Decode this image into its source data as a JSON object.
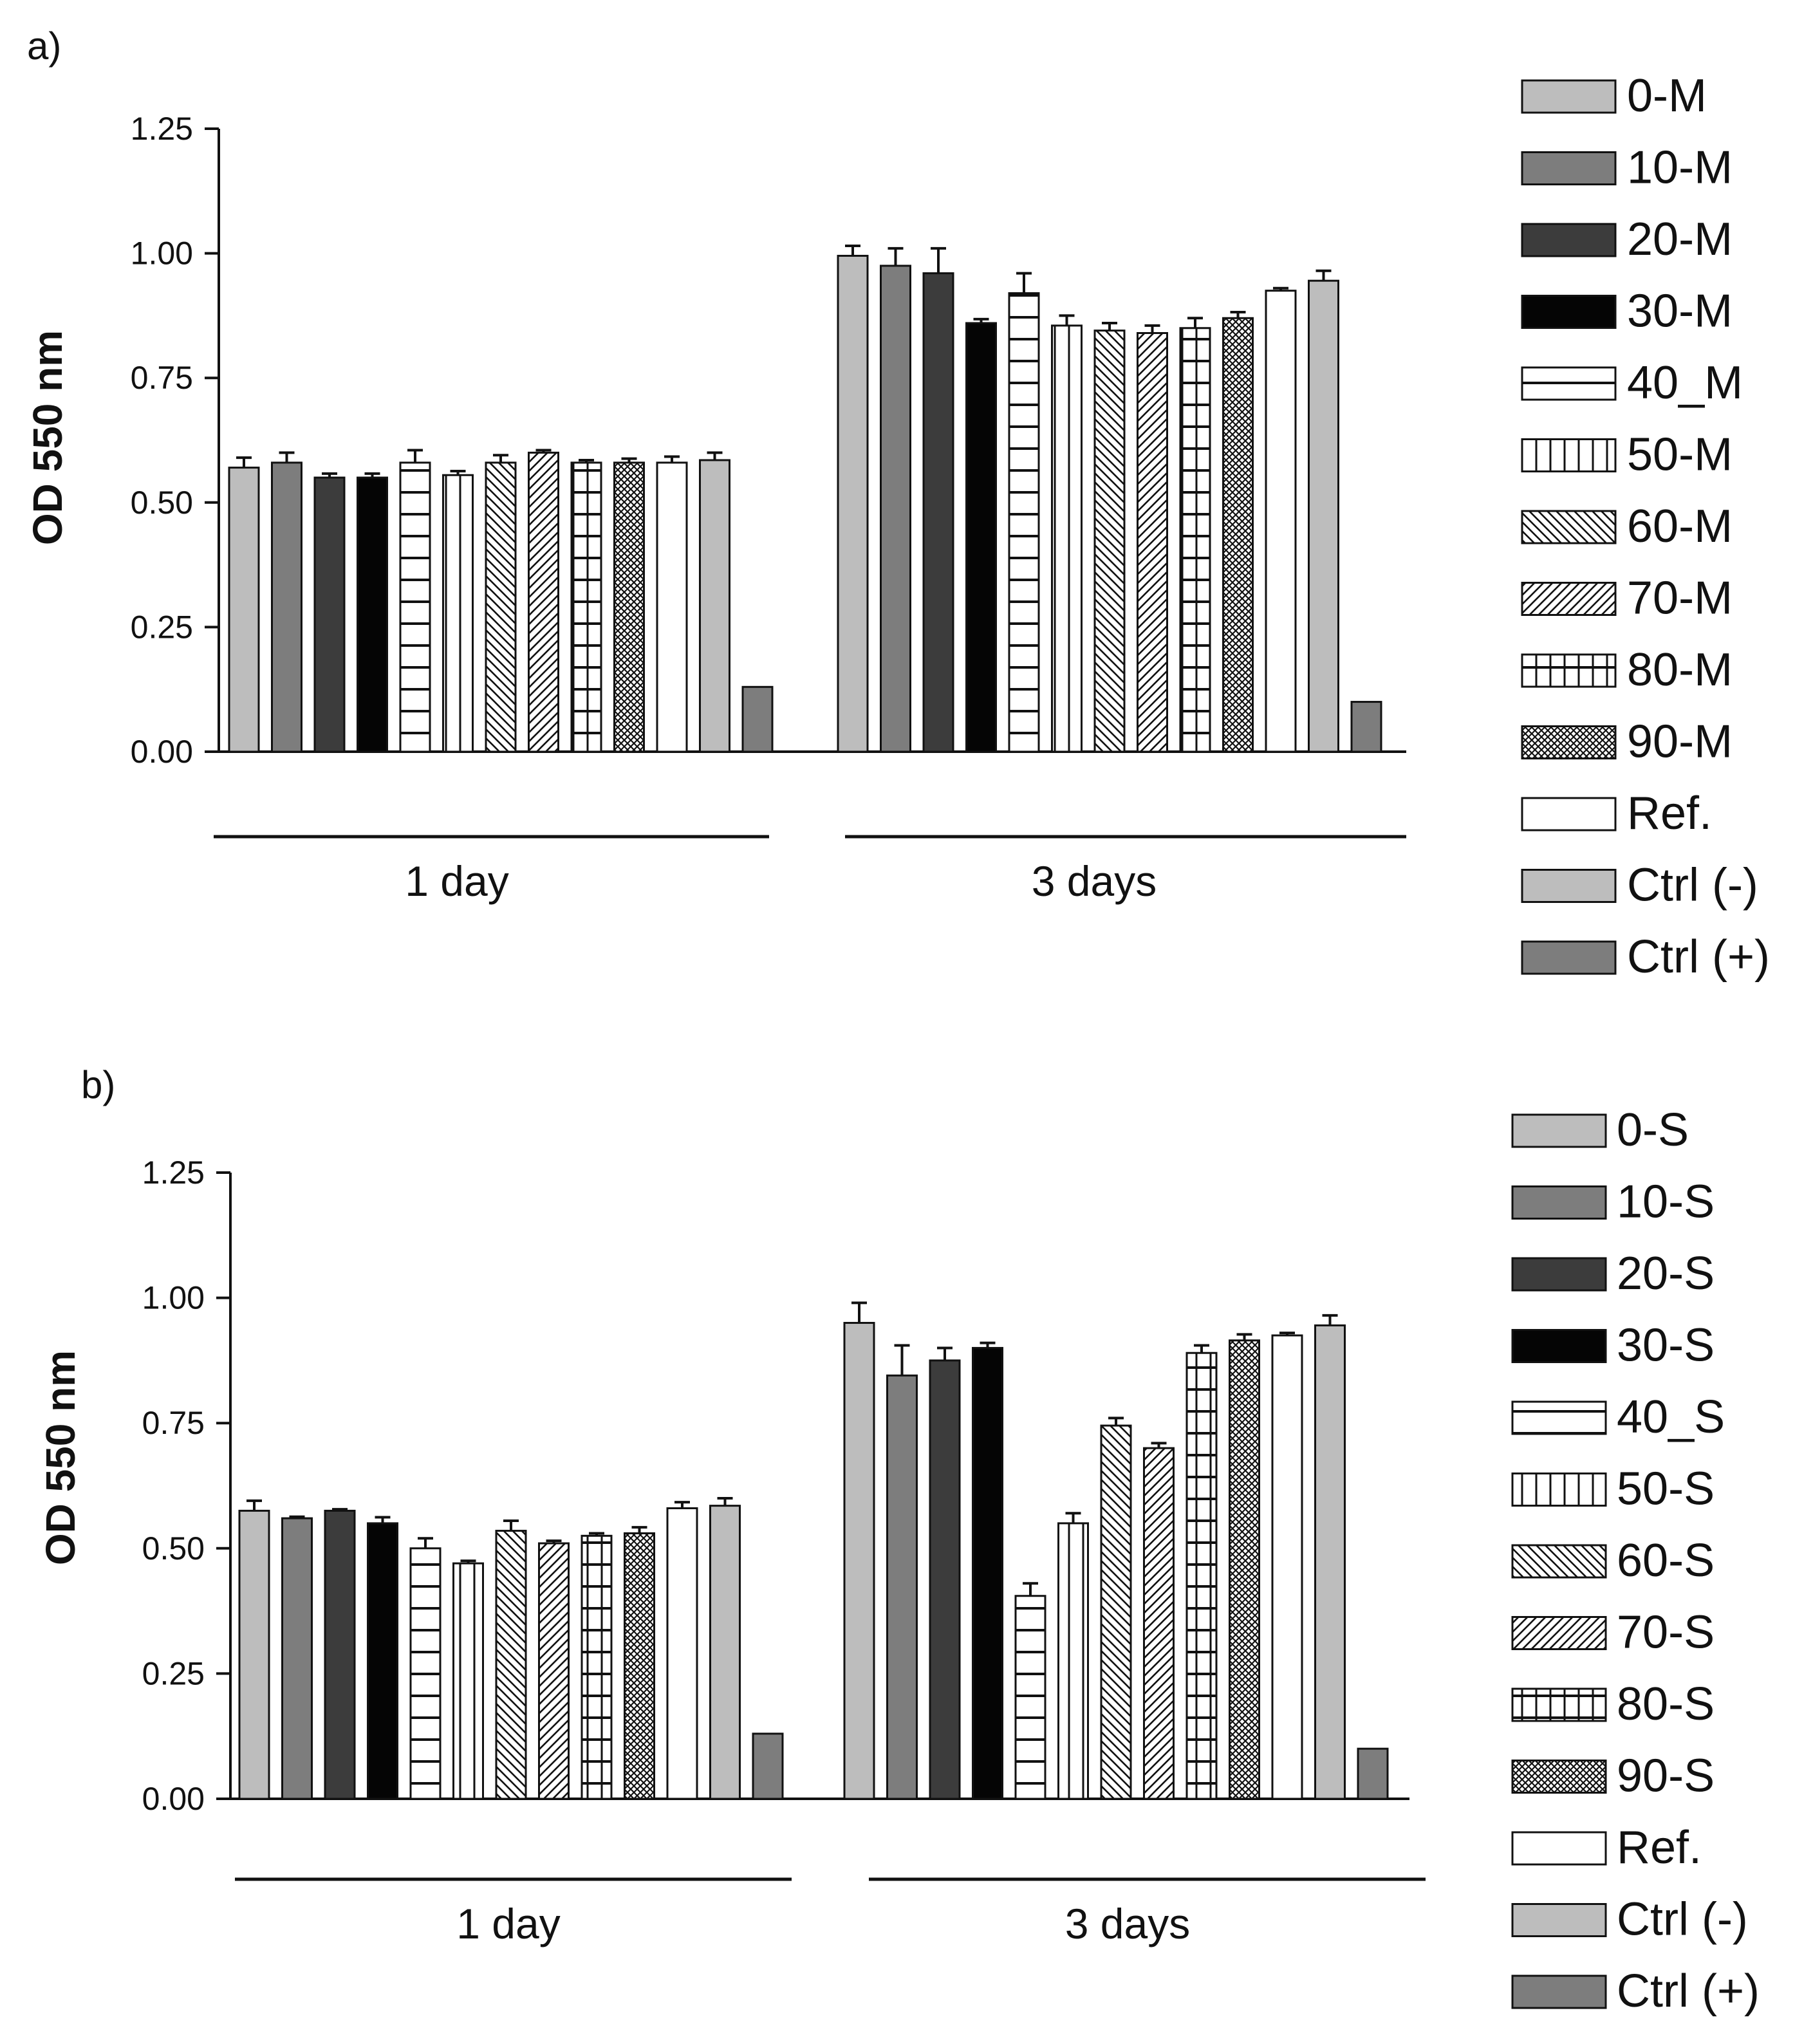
{
  "chart_data": [
    {
      "type": "bar",
      "panel_label": "a)",
      "ylabel": "OD 550 nm",
      "xlabel": "",
      "ylim": [
        0,
        1.25
      ],
      "yticks": [
        "0.00",
        "0.25",
        "0.50",
        "0.75",
        "1.00",
        "1.25"
      ],
      "categories": [
        "1 day",
        "3 days"
      ],
      "series": [
        {
          "name": "0-M",
          "pattern": "light",
          "values": [
            0.57,
            0.995
          ],
          "errors": [
            0.02,
            0.02
          ]
        },
        {
          "name": "10-M",
          "pattern": "medium",
          "values": [
            0.58,
            0.975
          ],
          "errors": [
            0.02,
            0.035
          ]
        },
        {
          "name": "20-M",
          "pattern": "dark",
          "values": [
            0.55,
            0.96
          ],
          "errors": [
            0.008,
            0.05
          ]
        },
        {
          "name": "30-M",
          "pattern": "black",
          "values": [
            0.55,
            0.86
          ],
          "errors": [
            0.008,
            0.008
          ]
        },
        {
          "name": "40_M",
          "pattern": "hlines",
          "values": [
            0.58,
            0.92
          ],
          "errors": [
            0.025,
            0.04
          ]
        },
        {
          "name": "50-M",
          "pattern": "vlines",
          "values": [
            0.555,
            0.855
          ],
          "errors": [
            0.008,
            0.02
          ]
        },
        {
          "name": "60-M",
          "pattern": "diag-down",
          "values": [
            0.58,
            0.845
          ],
          "errors": [
            0.015,
            0.015
          ]
        },
        {
          "name": "70-M",
          "pattern": "diag-up",
          "values": [
            0.6,
            0.84
          ],
          "errors": [
            0.005,
            0.015
          ]
        },
        {
          "name": "80-M",
          "pattern": "grid",
          "values": [
            0.58,
            0.85
          ],
          "errors": [
            0.005,
            0.02
          ]
        },
        {
          "name": "90-M",
          "pattern": "cross",
          "values": [
            0.58,
            0.87
          ],
          "errors": [
            0.008,
            0.012
          ]
        },
        {
          "name": "Ref.",
          "pattern": "white",
          "values": [
            0.58,
            0.925
          ],
          "errors": [
            0.012,
            0.005
          ]
        },
        {
          "name": "Ctrl (-)",
          "pattern": "light",
          "values": [
            0.585,
            0.945
          ],
          "errors": [
            0.015,
            0.02
          ]
        },
        {
          "name": "Ctrl (+)",
          "pattern": "medium",
          "values": [
            0.13,
            0.1
          ],
          "errors": [
            0,
            0
          ]
        }
      ]
    },
    {
      "type": "bar",
      "panel_label": "b)",
      "ylabel": "OD 550 nm",
      "xlabel": "",
      "ylim": [
        0,
        1.25
      ],
      "yticks": [
        "0.00",
        "0.25",
        "0.50",
        "0.75",
        "1.00",
        "1.25"
      ],
      "categories": [
        "1 day",
        "3 days"
      ],
      "series": [
        {
          "name": "0-S",
          "pattern": "light",
          "values": [
            0.575,
            0.95
          ],
          "errors": [
            0.02,
            0.04
          ]
        },
        {
          "name": "10-S",
          "pattern": "medium",
          "values": [
            0.56,
            0.845
          ],
          "errors": [
            0.003,
            0.06
          ]
        },
        {
          "name": "20-S",
          "pattern": "dark",
          "values": [
            0.575,
            0.875
          ],
          "errors": [
            0.003,
            0.025
          ]
        },
        {
          "name": "30-S",
          "pattern": "black",
          "values": [
            0.55,
            0.9
          ],
          "errors": [
            0.012,
            0.01
          ]
        },
        {
          "name": "40_S",
          "pattern": "hlines",
          "values": [
            0.5,
            0.405
          ],
          "errors": [
            0.02,
            0.025
          ]
        },
        {
          "name": "50-S",
          "pattern": "vlines",
          "values": [
            0.47,
            0.55
          ],
          "errors": [
            0.005,
            0.02
          ]
        },
        {
          "name": "60-S",
          "pattern": "diag-down",
          "values": [
            0.535,
            0.745
          ],
          "errors": [
            0.02,
            0.015
          ]
        },
        {
          "name": "70-S",
          "pattern": "diag-up",
          "values": [
            0.51,
            0.7
          ],
          "errors": [
            0.005,
            0.01
          ]
        },
        {
          "name": "80-S",
          "pattern": "grid",
          "values": [
            0.525,
            0.89
          ],
          "errors": [
            0.005,
            0.015
          ]
        },
        {
          "name": "90-S",
          "pattern": "cross",
          "values": [
            0.53,
            0.915
          ],
          "errors": [
            0.012,
            0.012
          ]
        },
        {
          "name": "Ref.",
          "pattern": "white",
          "values": [
            0.58,
            0.925
          ],
          "errors": [
            0.012,
            0.005
          ]
        },
        {
          "name": "Ctrl (-)",
          "pattern": "light",
          "values": [
            0.585,
            0.945
          ],
          "errors": [
            0.015,
            0.02
          ]
        },
        {
          "name": "Ctrl (+)",
          "pattern": "medium",
          "values": [
            0.13,
            0.1
          ],
          "errors": [
            0,
            0
          ]
        }
      ]
    }
  ],
  "colors": {
    "light": "#bdbdbd",
    "medium": "#7d7d7d",
    "dark": "#3c3c3c",
    "black": "#050505",
    "white": "#ffffff",
    "ink": "#111111"
  }
}
